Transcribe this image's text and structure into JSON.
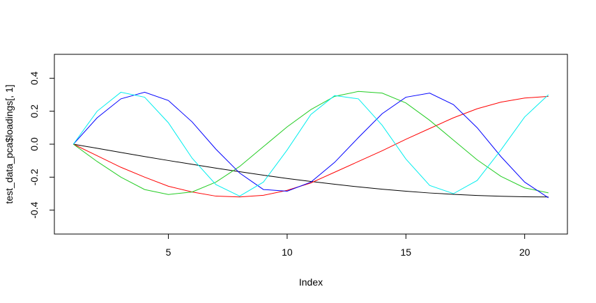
{
  "chart_data": {
    "type": "line",
    "x_label": "Index",
    "y_label": "test_data_pca$loadings[, 1]",
    "x": [
      1,
      2,
      3,
      4,
      5,
      6,
      7,
      8,
      9,
      10,
      11,
      12,
      13,
      14,
      15,
      16,
      17,
      18,
      19,
      20,
      21
    ],
    "series": [
      {
        "color": "#000000",
        "values": [
          0,
          -0.025,
          -0.05,
          -0.075,
          -0.099,
          -0.122,
          -0.145,
          -0.167,
          -0.188,
          -0.208,
          -0.226,
          -0.243,
          -0.259,
          -0.273,
          -0.285,
          -0.296,
          -0.304,
          -0.311,
          -0.316,
          -0.319,
          -0.32
        ]
      },
      {
        "color": "#ff0000",
        "values": [
          0,
          -0.07,
          -0.14,
          -0.2,
          -0.255,
          -0.29,
          -0.315,
          -0.32,
          -0.31,
          -0.28,
          -0.235,
          -0.17,
          -0.105,
          -0.04,
          0.03,
          0.095,
          0.16,
          0.215,
          0.255,
          0.28,
          0.29
        ]
      },
      {
        "color": "#22cc22",
        "values": [
          0,
          -0.105,
          -0.2,
          -0.275,
          -0.305,
          -0.29,
          -0.23,
          -0.135,
          -0.015,
          0.105,
          0.21,
          0.29,
          0.32,
          0.31,
          0.25,
          0.145,
          0.025,
          -0.095,
          -0.195,
          -0.265,
          -0.295
        ]
      },
      {
        "color": "#0000ff",
        "values": [
          0,
          0.16,
          0.275,
          0.315,
          0.265,
          0.135,
          -0.03,
          -0.175,
          -0.275,
          -0.285,
          -0.23,
          -0.11,
          0.04,
          0.185,
          0.285,
          0.31,
          0.24,
          0.1,
          -0.075,
          -0.23,
          -0.325
        ]
      },
      {
        "color": "#00eeee",
        "values": [
          0,
          0.2,
          0.315,
          0.285,
          0.13,
          -0.085,
          -0.245,
          -0.315,
          -0.23,
          -0.035,
          0.18,
          0.295,
          0.275,
          0.115,
          -0.09,
          -0.25,
          -0.3,
          -0.22,
          -0.035,
          0.165,
          0.3
        ]
      }
    ],
    "xlim": [
      0.2,
      21.8
    ],
    "xticks": [
      5,
      10,
      15,
      20
    ],
    "ylim": [
      -0.545,
      0.545
    ],
    "yticks": [
      -0.4,
      -0.2,
      {
        "value": 0,
        "label": "0.0"
      },
      0.2,
      0.4
    ]
  }
}
